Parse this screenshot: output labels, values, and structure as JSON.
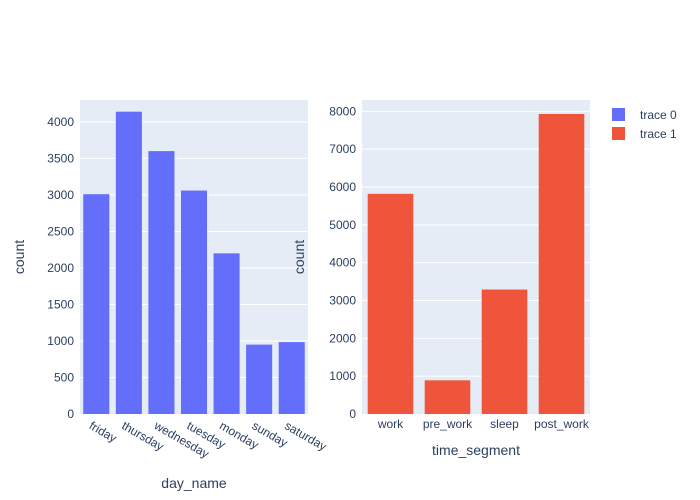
{
  "chart_data": [
    {
      "type": "bar",
      "categories": [
        "friday",
        "thursday",
        "wednesday",
        "tuesday",
        "monday",
        "sunday",
        "saturday"
      ],
      "series": [
        {
          "name": "trace 0",
          "values": [
            3010,
            4140,
            3600,
            3060,
            2200,
            950,
            985
          ],
          "color": "#636efa"
        }
      ],
      "xlabel": "day_name",
      "ylabel": "count",
      "ylim": [
        0,
        4300
      ],
      "yticks": [
        0,
        500,
        1000,
        1500,
        2000,
        2500,
        3000,
        3500,
        4000
      ],
      "ytick_labels": [
        "0",
        "500",
        "1000",
        "1500",
        "2000",
        "2500",
        "3000",
        "3500",
        "4000"
      ],
      "x_tick_rotation": 30,
      "grid": true
    },
    {
      "type": "bar",
      "categories": [
        "work",
        "pre_work",
        "sleep",
        "post_work"
      ],
      "series": [
        {
          "name": "trace 1",
          "values": [
            5820,
            890,
            3290,
            7930
          ],
          "color": "#ef553b"
        }
      ],
      "xlabel": "time_segment",
      "ylabel": "count",
      "ylim": [
        0,
        8300
      ],
      "yticks": [
        0,
        1000,
        2000,
        3000,
        4000,
        5000,
        6000,
        7000,
        8000
      ],
      "ytick_labels": [
        "0",
        "1000",
        "2000",
        "3000",
        "4000",
        "5000",
        "6000",
        "7000",
        "8000"
      ],
      "x_tick_rotation": 0,
      "grid": true
    }
  ],
  "legend": {
    "placement": "top-right",
    "items": [
      {
        "label": "trace 0",
        "color": "#636efa"
      },
      {
        "label": "trace 1",
        "color": "#ef553b"
      }
    ]
  },
  "style": {
    "plot_background": "#e5ecf6",
    "grid_color": "#ffffff",
    "text_color": "#2a3f5f"
  }
}
